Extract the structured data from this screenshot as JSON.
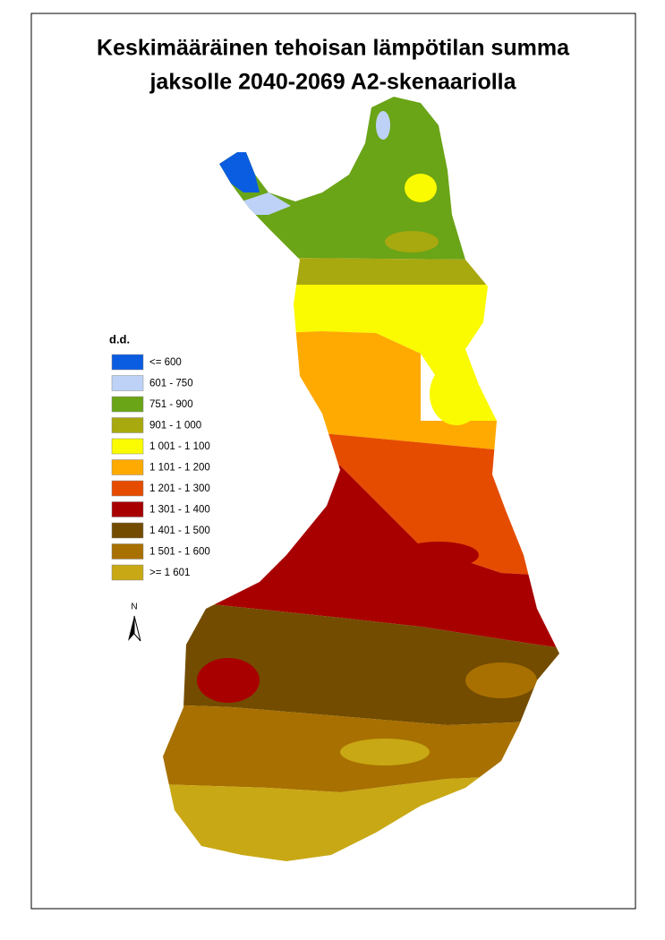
{
  "title": [
    "Keskimääräinen tehoisan lämpötilan summa",
    "jaksolle 2040-2069 A2-skenaariolla"
  ],
  "legend": {
    "title": "d.d.",
    "items": [
      {
        "label": "<= 600",
        "color": "#0a5ce0"
      },
      {
        "label": "601 - 750",
        "color": "#bed2f7"
      },
      {
        "label": "751 - 900",
        "color": "#6aa417"
      },
      {
        "label": "901 - 1 000",
        "color": "#a8a80f"
      },
      {
        "label": "1 001 - 1 100",
        "color": "#fafa00"
      },
      {
        "label": "1 101 - 1 200",
        "color": "#ffaa00"
      },
      {
        "label": "1 201 - 1 300",
        "color": "#e64c00"
      },
      {
        "label": "1 301 - 1 400",
        "color": "#a80000"
      },
      {
        "label": "1 401 - 1 500",
        "color": "#734c00"
      },
      {
        "label": "1 501 - 1 600",
        "color": "#a87000"
      },
      {
        "label": ">= 1 601",
        "color": "#c8a814"
      }
    ]
  },
  "north_arrow": "N"
}
